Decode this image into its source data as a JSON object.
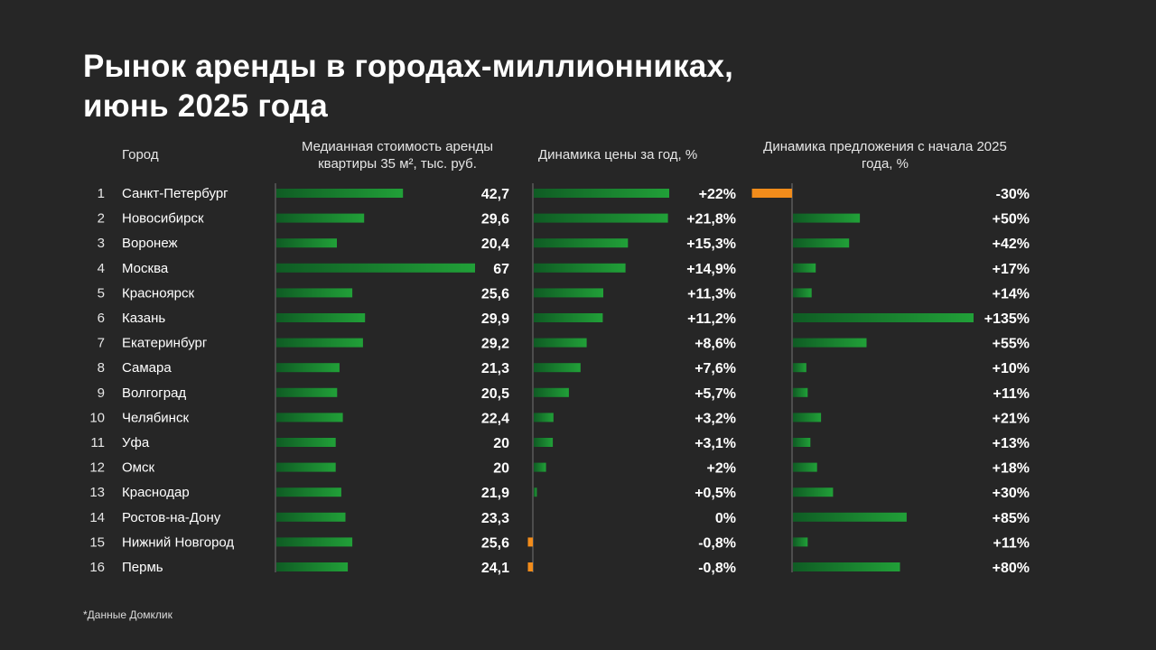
{
  "title_line1": "Рынок аренды в городах-миллионниках,",
  "title_line2": "июнь 2025 года",
  "headers": {
    "city": "Город",
    "cost_line1": "Медианная стоимость аренды",
    "cost_line2": "квартиры 35 м², тыс. руб.",
    "price": "Динамика цены за год, %",
    "supply_line1": "Динамика предложения с начала 2025",
    "supply_line2": "года, %"
  },
  "footnote": "*Данные Домклик",
  "colors": {
    "background": "#262626",
    "positive_bar": "#21a038",
    "negative_bar": "#f28c1b",
    "axis": "#5a5a5a"
  },
  "chart_data": {
    "type": "bar",
    "orientation": "horizontal",
    "ranks": [
      "1",
      "2",
      "3",
      "4",
      "5",
      "6",
      "7",
      "8",
      "9",
      "10",
      "11",
      "12",
      "13",
      "14",
      "15",
      "16"
    ],
    "categories": [
      "Санкт-Петербург",
      "Новосибирск",
      "Воронеж",
      "Москва",
      "Красноярск",
      "Казань",
      "Екатеринбург",
      "Самара",
      "Волгоград",
      "Челябинск",
      "Уфа",
      "Омск",
      "Краснодар",
      "Ростов-на-Дону",
      "Нижний Новгород",
      "Пермь"
    ],
    "series": [
      {
        "name": "Медианная стоимость аренды квартиры 35 м², тыс. руб.",
        "values": [
          42.7,
          29.6,
          20.4,
          67,
          25.6,
          29.9,
          29.2,
          21.3,
          20.5,
          22.4,
          20,
          20,
          21.9,
          23.3,
          25.6,
          24.1
        ],
        "labels": [
          "42,7",
          "29,6",
          "20,4",
          "67",
          "25,6",
          "29,9",
          "29,2",
          "21,3",
          "20,5",
          "22,4",
          "20",
          "20",
          "21,9",
          "23,3",
          "25,6",
          "24,1"
        ]
      },
      {
        "name": "Динамика цены за год, %",
        "values": [
          22,
          21.8,
          15.3,
          14.9,
          11.3,
          11.2,
          8.6,
          7.6,
          5.7,
          3.2,
          3.1,
          2,
          0.5,
          0,
          -0.8,
          -0.8
        ],
        "labels": [
          "+22%",
          "+21,8%",
          "+15,3%",
          "+14,9%",
          "+11,3%",
          "+11,2%",
          "+8,6%",
          "+7,6%",
          "+5,7%",
          "+3,2%",
          "+3,1%",
          "+2%",
          "+0,5%",
          "0%",
          "-0,8%",
          "-0,8%"
        ]
      },
      {
        "name": "Динамика предложения с начала 2025 года, %",
        "values": [
          -30,
          50,
          42,
          17,
          14,
          135,
          55,
          10,
          11,
          21,
          13,
          18,
          30,
          85,
          11,
          80
        ],
        "labels": [
          "-30%",
          "+50%",
          "+42%",
          "+17%",
          "+14%",
          "+135%",
          "+55%",
          "+10%",
          "+11%",
          "+21%",
          "+13%",
          "+18%",
          "+30%",
          "+85%",
          "+11%",
          "+80%"
        ]
      }
    ]
  }
}
